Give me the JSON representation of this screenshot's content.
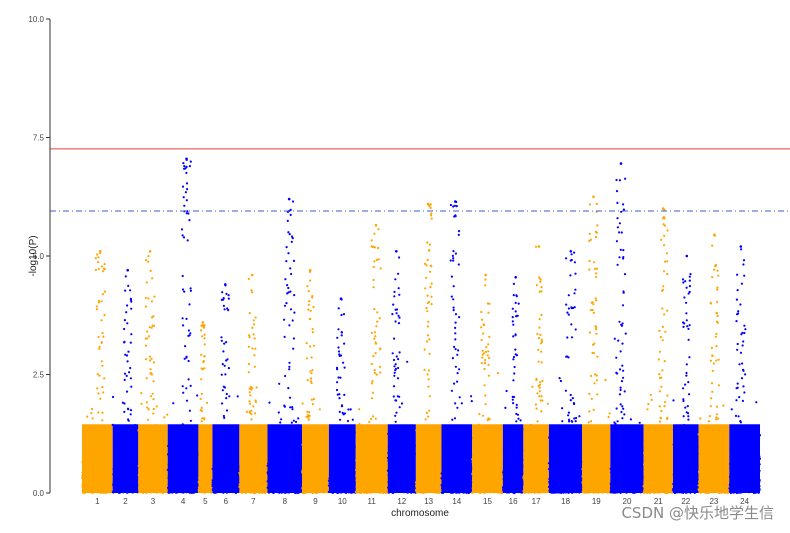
{
  "chart_data": {
    "type": "scatter",
    "title": "",
    "xlabel": "chromosome",
    "ylabel": "-log10(P)",
    "ylim": [
      0,
      10
    ],
    "yticks": [
      "0.0",
      "2.5",
      "5.0",
      "7.5",
      "10.0"
    ],
    "grid": false,
    "legend": "none",
    "colors": [
      "#FFA500",
      "#0000FF"
    ],
    "thresholds": [
      {
        "value": 7.26,
        "style": "solid",
        "color": "#E8423A"
      },
      {
        "value": 5.95,
        "style": "dashdot",
        "color": "#3A5FCD"
      }
    ],
    "chromosomes": [
      {
        "label": "1",
        "width": 1.2,
        "peak": 5.1
      },
      {
        "label": "2",
        "width": 1.0,
        "peak": 4.7
      },
      {
        "label": "3",
        "width": 1.15,
        "peak": 5.1
      },
      {
        "label": "4",
        "width": 1.2,
        "peak": 7.05
      },
      {
        "label": "5",
        "width": 0.55,
        "peak": 3.6
      },
      {
        "label": "6",
        "width": 1.05,
        "peak": 4.4
      },
      {
        "label": "7",
        "width": 1.1,
        "peak": 4.6
      },
      {
        "label": "8",
        "width": 1.35,
        "peak": 6.2
      },
      {
        "label": "9",
        "width": 1.05,
        "peak": 4.7
      },
      {
        "label": "10",
        "width": 1.05,
        "peak": 4.1
      },
      {
        "label": "11",
        "width": 1.25,
        "peak": 5.65
      },
      {
        "label": "12",
        "width": 1.1,
        "peak": 5.1
      },
      {
        "label": "13",
        "width": 1.0,
        "peak": 6.1
      },
      {
        "label": "14",
        "width": 1.2,
        "peak": 6.15
      },
      {
        "label": "15",
        "width": 1.2,
        "peak": 4.6
      },
      {
        "label": "16",
        "width": 0.8,
        "peak": 4.55
      },
      {
        "label": "17",
        "width": 1.0,
        "peak": 5.2
      },
      {
        "label": "18",
        "width": 1.3,
        "peak": 5.1
      },
      {
        "label": "19",
        "width": 1.1,
        "peak": 6.25
      },
      {
        "label": "20",
        "width": 1.3,
        "peak": 6.95
      },
      {
        "label": "21",
        "width": 1.15,
        "peak": 6.0
      },
      {
        "label": "22",
        "width": 1.0,
        "peak": 5.0
      },
      {
        "label": "23",
        "width": 1.2,
        "peak": 5.45
      },
      {
        "label": "24",
        "width": 1.2,
        "peak": 5.2
      }
    ]
  },
  "watermark": "CSDN @快乐地学生信"
}
